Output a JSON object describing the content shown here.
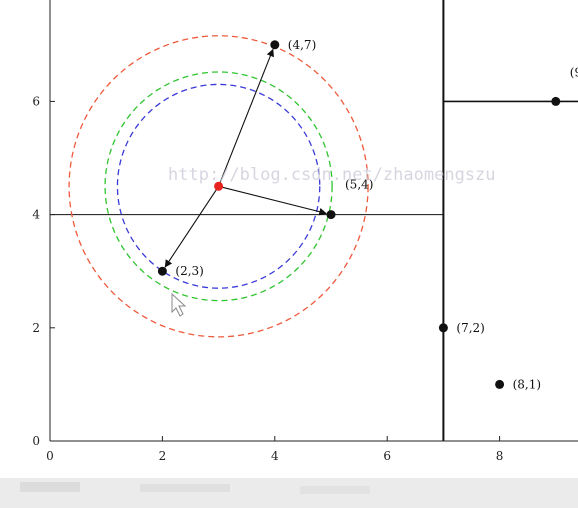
{
  "diagram": {
    "x_ticks": [
      0,
      2,
      4,
      6,
      8
    ],
    "y_ticks": [
      0,
      2,
      4,
      6
    ],
    "xlim": [
      0,
      9.4
    ],
    "ylim": [
      0,
      7.8
    ],
    "split_lines": [
      {
        "name": "split-y4",
        "from": [
          0,
          4
        ],
        "to": [
          7,
          4
        ]
      },
      {
        "name": "split-x7",
        "from": [
          7,
          0
        ],
        "to": [
          7,
          7.8
        ]
      },
      {
        "name": "split-y6",
        "from": [
          7,
          6
        ],
        "to": [
          9.4,
          6
        ]
      }
    ],
    "points": [
      {
        "label": "(4,7)",
        "x": 4,
        "y": 7
      },
      {
        "label": "(5,4)",
        "x": 5,
        "y": 4
      },
      {
        "label": "(2,3)",
        "x": 2,
        "y": 3
      },
      {
        "label": "(7,2)",
        "x": 7,
        "y": 2
      },
      {
        "label": "(8,1)",
        "x": 8,
        "y": 1
      },
      {
        "label": "(9",
        "x": 9,
        "y": 6
      }
    ],
    "query_point": {
      "x": 3,
      "y": 4.5,
      "color": "#e8231f"
    },
    "arrows_to": [
      [
        4,
        7
      ],
      [
        5,
        4
      ],
      [
        2,
        3
      ]
    ],
    "circles": [
      {
        "name": "circle-red",
        "radius": 2.66,
        "color": "#ee5a3c"
      },
      {
        "name": "circle-green",
        "radius": 2.02,
        "color": "#2fc42f"
      },
      {
        "name": "circle-blue",
        "radius": 1.8,
        "color": "#3a3ad8"
      }
    ],
    "watermark": "http://blog.csdn.net/zhaomengszu"
  }
}
